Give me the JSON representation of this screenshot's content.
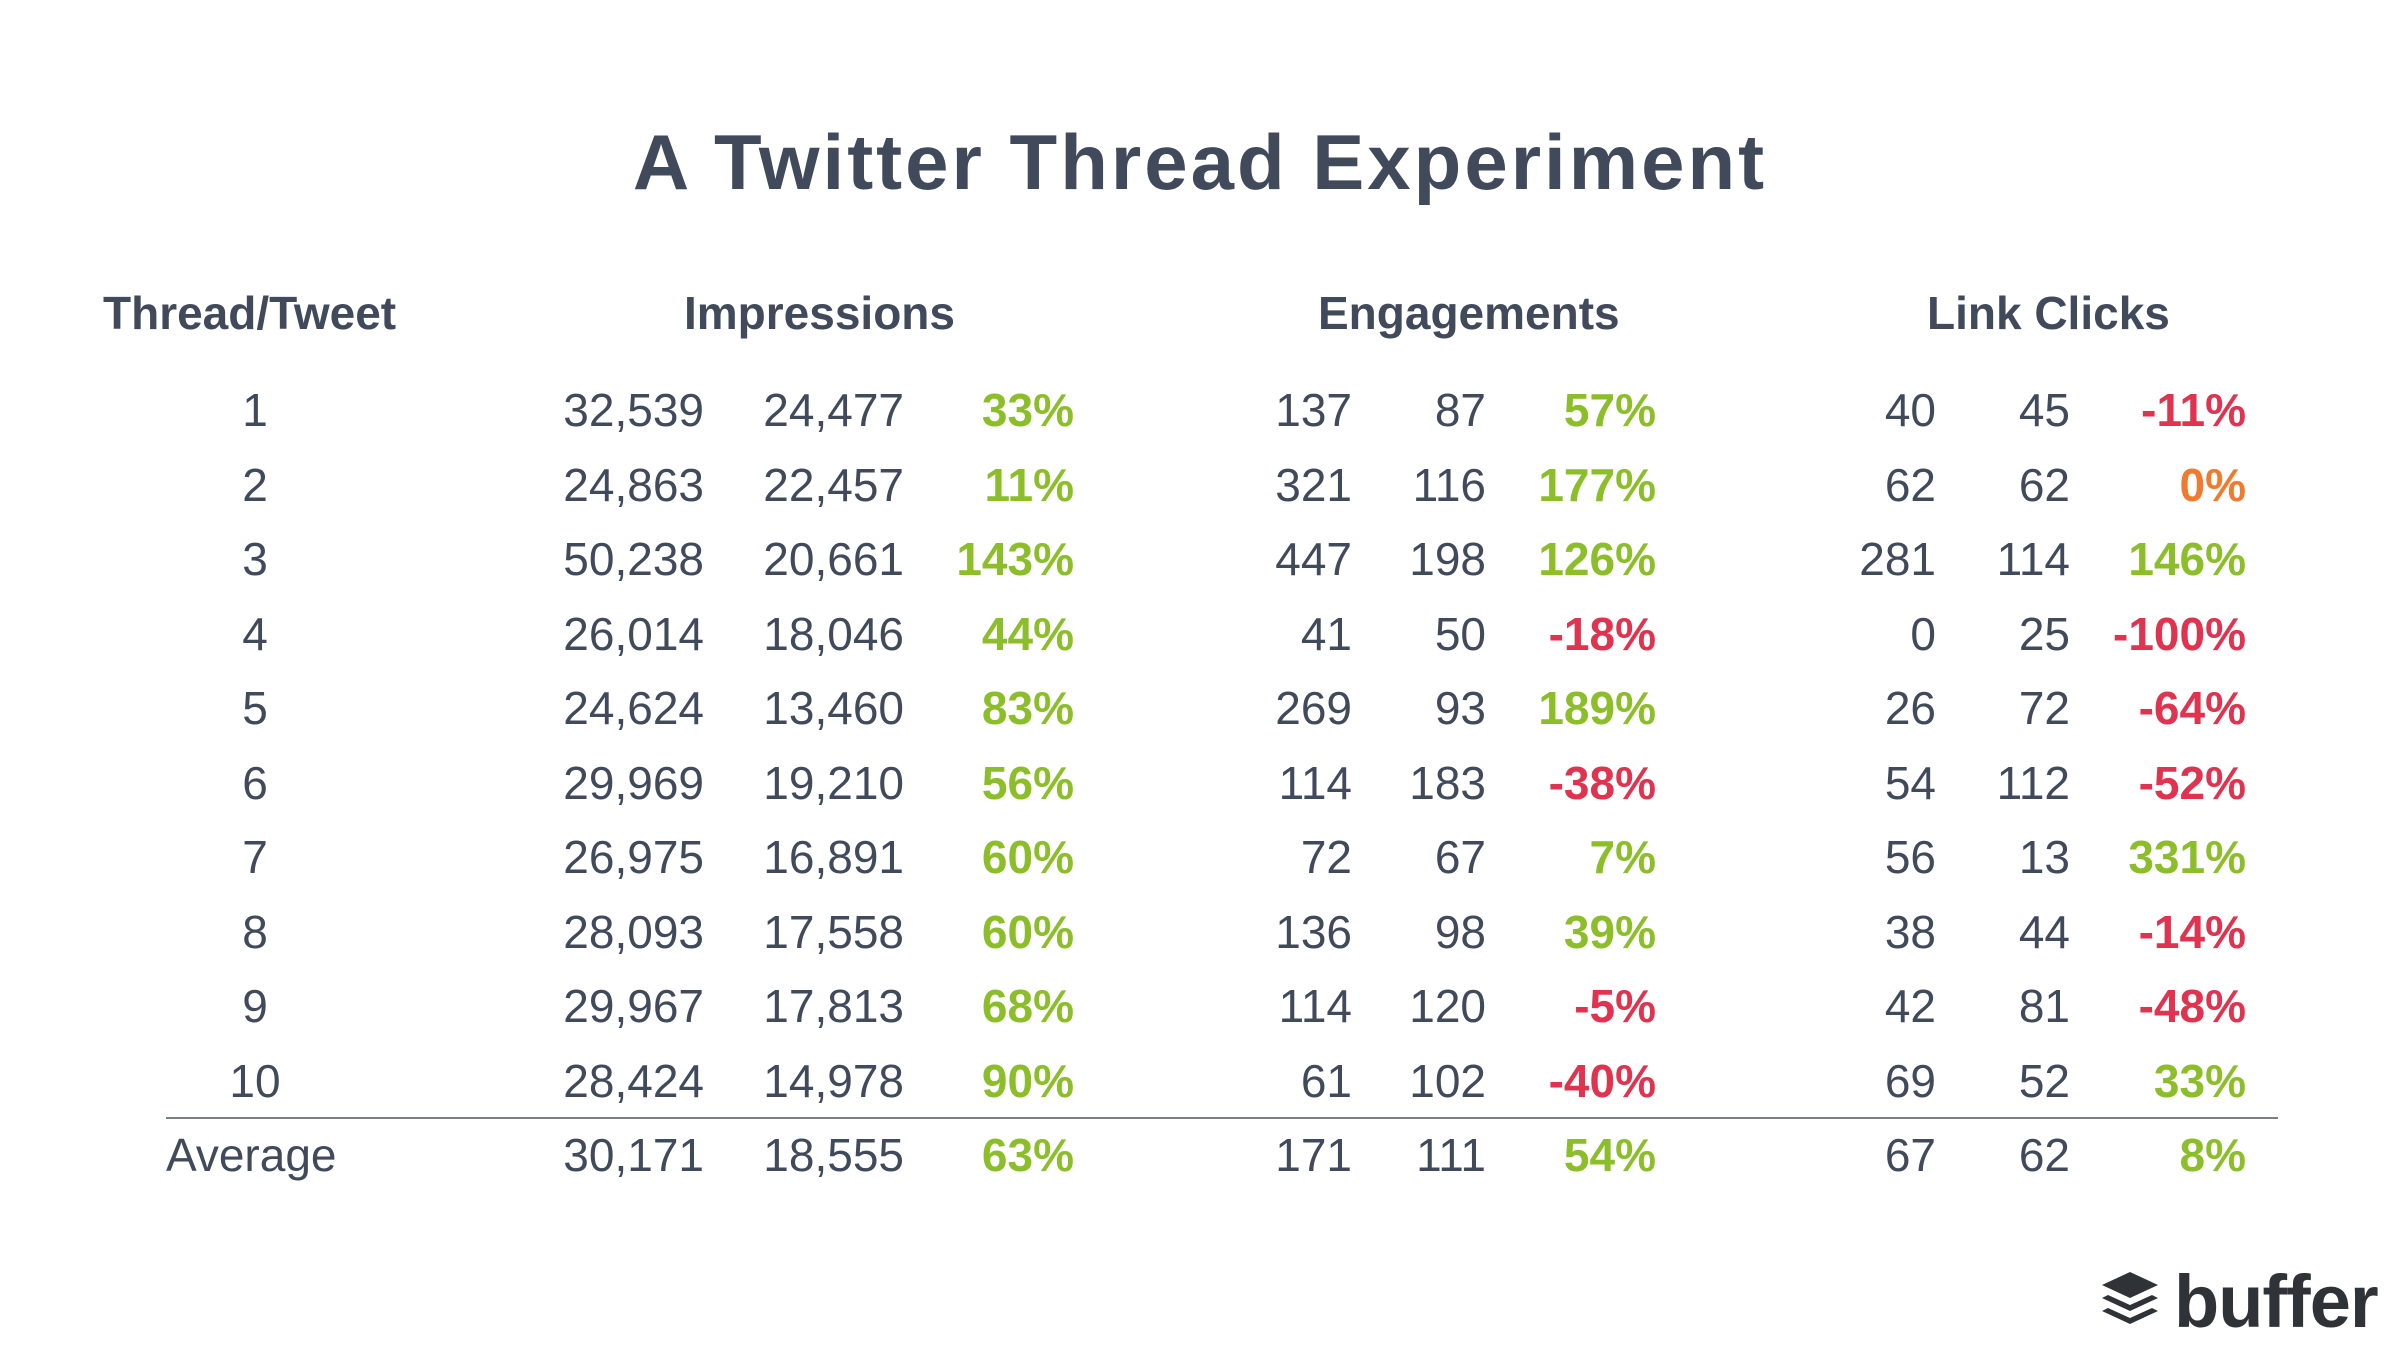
{
  "title": "A Twitter Thread Experiment",
  "headers": {
    "thread": "Thread/Tweet",
    "impressions": "Impressions",
    "engagements": "Engagements",
    "link_clicks": "Link Clicks"
  },
  "colors": {
    "positive": "#8cbe2a",
    "negative": "#e0334f",
    "neutral": "#f07a2e",
    "text": "#404a5b"
  },
  "logo": {
    "icon": "stack-layers-icon",
    "text": "buffer"
  },
  "chart_data": {
    "type": "table",
    "title": "A Twitter Thread Experiment",
    "groups": [
      "Impressions",
      "Engagements",
      "Link Clicks"
    ],
    "rows": [
      {
        "label": "1",
        "imp": [
          "32,539",
          "24,477",
          "33%"
        ],
        "eng": [
          "137",
          "87",
          "57%"
        ],
        "clk": [
          "40",
          "45",
          "-11%"
        ]
      },
      {
        "label": "2",
        "imp": [
          "24,863",
          "22,457",
          "11%"
        ],
        "eng": [
          "321",
          "116",
          "177%"
        ],
        "clk": [
          "62",
          "62",
          "0%"
        ]
      },
      {
        "label": "3",
        "imp": [
          "50,238",
          "20,661",
          "143%"
        ],
        "eng": [
          "447",
          "198",
          "126%"
        ],
        "clk": [
          "281",
          "114",
          "146%"
        ]
      },
      {
        "label": "4",
        "imp": [
          "26,014",
          "18,046",
          "44%"
        ],
        "eng": [
          "41",
          "50",
          "-18%"
        ],
        "clk": [
          "0",
          "25",
          "-100%"
        ]
      },
      {
        "label": "5",
        "imp": [
          "24,624",
          "13,460",
          "83%"
        ],
        "eng": [
          "269",
          "93",
          "189%"
        ],
        "clk": [
          "26",
          "72",
          "-64%"
        ]
      },
      {
        "label": "6",
        "imp": [
          "29,969",
          "19,210",
          "56%"
        ],
        "eng": [
          "114",
          "183",
          "-38%"
        ],
        "clk": [
          "54",
          "112",
          "-52%"
        ]
      },
      {
        "label": "7",
        "imp": [
          "26,975",
          "16,891",
          "60%"
        ],
        "eng": [
          "72",
          "67",
          "7%"
        ],
        "clk": [
          "56",
          "13",
          "331%"
        ]
      },
      {
        "label": "8",
        "imp": [
          "28,093",
          "17,558",
          "60%"
        ],
        "eng": [
          "136",
          "98",
          "39%"
        ],
        "clk": [
          "38",
          "44",
          "-14%"
        ]
      },
      {
        "label": "9",
        "imp": [
          "29,967",
          "17,813",
          "68%"
        ],
        "eng": [
          "114",
          "120",
          "-5%"
        ],
        "clk": [
          "42",
          "81",
          "-48%"
        ]
      },
      {
        "label": "10",
        "imp": [
          "28,424",
          "14,978",
          "90%"
        ],
        "eng": [
          "61",
          "102",
          "-40%"
        ],
        "clk": [
          "69",
          "52",
          "33%"
        ]
      }
    ],
    "average": {
      "label": "Average",
      "imp": [
        "30,171",
        "18,555",
        "63%"
      ],
      "eng": [
        "171",
        "111",
        "54%"
      ],
      "clk": [
        "67",
        "62",
        "8%"
      ]
    }
  }
}
